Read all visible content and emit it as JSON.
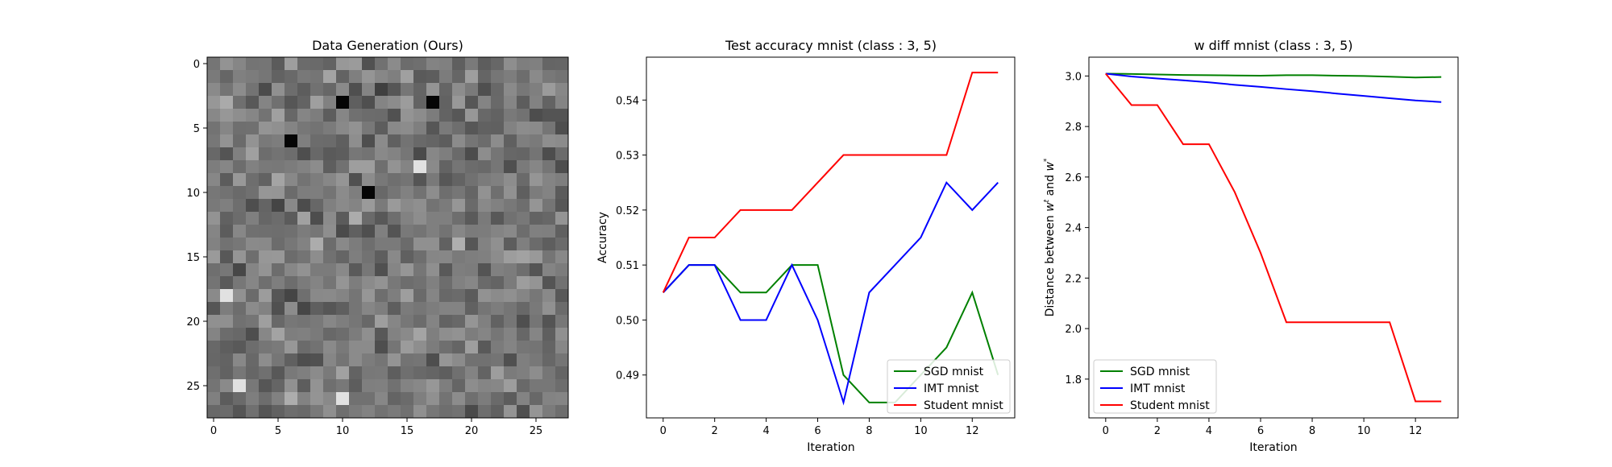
{
  "charts": [
    {
      "type": "heatmap",
      "title": "Data Generation (Ours)",
      "xlabel": "",
      "ylabel": "",
      "rows": 28,
      "cols": 28,
      "colormap": "gray",
      "seed": 7,
      "dark_cells": [
        [
          3,
          10
        ],
        [
          3,
          17
        ],
        [
          6,
          6
        ],
        [
          10,
          12
        ]
      ],
      "bright_cells": [
        [
          8,
          16
        ],
        [
          26,
          10
        ],
        [
          25,
          2
        ],
        [
          18,
          1
        ]
      ],
      "xticks": [
        "0",
        "5",
        "10",
        "15",
        "20",
        "25"
      ],
      "yticks": [
        "0",
        "5",
        "10",
        "15",
        "20",
        "25"
      ],
      "xtick_values": [
        0,
        5,
        10,
        15,
        20,
        25
      ],
      "ytick_values": [
        0,
        5,
        10,
        15,
        20,
        25
      ]
    },
    {
      "type": "line",
      "title": "Test accuracy mnist (class : 3, 5)",
      "xlabel": "Iteration",
      "ylabel": "Accuracy",
      "xlim": [
        -0.65,
        13.65
      ],
      "ylim": [
        0.4822,
        0.5478
      ],
      "xticks": [
        0,
        2,
        4,
        6,
        8,
        10,
        12
      ],
      "yticks": [
        0.49,
        0.5,
        0.51,
        0.52,
        0.53,
        0.54
      ],
      "ytick_labels": [
        "0.49",
        "0.50",
        "0.51",
        "0.52",
        "0.53",
        "0.54"
      ],
      "legend_position": "lower-right",
      "series": [
        {
          "name": "SGD mnist",
          "color": "#008000",
          "x": [
            0,
            1,
            2,
            3,
            4,
            5,
            6,
            7,
            8,
            9,
            10,
            11,
            12,
            13
          ],
          "values": [
            0.505,
            0.51,
            0.51,
            0.505,
            0.505,
            0.51,
            0.51,
            0.49,
            0.485,
            0.485,
            0.49,
            0.495,
            0.505,
            0.49
          ]
        },
        {
          "name": "IMT mnist",
          "color": "#0000ff",
          "x": [
            0,
            1,
            2,
            3,
            4,
            5,
            6,
            7,
            8,
            9,
            10,
            11,
            12,
            13
          ],
          "values": [
            0.505,
            0.51,
            0.51,
            0.5,
            0.5,
            0.51,
            0.5,
            0.485,
            0.505,
            0.51,
            0.515,
            0.525,
            0.52,
            0.525
          ]
        },
        {
          "name": "Student mnist",
          "color": "#ff0000",
          "x": [
            0,
            1,
            2,
            3,
            4,
            5,
            6,
            7,
            8,
            9,
            10,
            11,
            12,
            13
          ],
          "values": [
            0.505,
            0.515,
            0.515,
            0.52,
            0.52,
            0.52,
            0.525,
            0.53,
            0.53,
            0.53,
            0.53,
            0.53,
            0.545,
            0.545
          ]
        }
      ]
    },
    {
      "type": "line",
      "title": "w diff mnist (class : 3, 5)",
      "xlabel": "Iteration",
      "ylabel_prefix": "Distance between ",
      "ylabel_w1": "w",
      "ylabel_sup1": "t",
      "ylabel_mid": " and ",
      "ylabel_w2": "w",
      "ylabel_sup2": "*",
      "xlim": [
        -0.65,
        13.65
      ],
      "ylim": [
        1.6465,
        3.0745
      ],
      "xticks": [
        0,
        2,
        4,
        6,
        8,
        10,
        12
      ],
      "yticks": [
        1.8,
        2.0,
        2.2,
        2.4,
        2.6,
        2.8,
        3.0
      ],
      "ytick_labels": [
        "1.8",
        "2.0",
        "2.2",
        "2.4",
        "2.6",
        "2.8",
        "3.0"
      ],
      "legend_position": "lower-left",
      "series": [
        {
          "name": "SGD mnist",
          "color": "#008000",
          "x": [
            0,
            1,
            2,
            3,
            4,
            5,
            6,
            7,
            8,
            9,
            10,
            11,
            12,
            13
          ],
          "values": [
            3.009,
            3.008,
            3.006,
            3.004,
            3.003,
            3.002,
            3.001,
            3.003,
            3.003,
            3.001,
            3.0,
            2.997,
            2.994,
            2.996
          ]
        },
        {
          "name": "IMT mnist",
          "color": "#0000ff",
          "x": [
            0,
            1,
            2,
            3,
            4,
            5,
            6,
            7,
            8,
            9,
            10,
            11,
            12,
            13
          ],
          "values": [
            3.009,
            2.998,
            2.99,
            2.983,
            2.975,
            2.965,
            2.957,
            2.948,
            2.94,
            2.93,
            2.921,
            2.912,
            2.903,
            2.897
          ]
        },
        {
          "name": "Student mnist",
          "color": "#ff0000",
          "x": [
            0,
            1,
            2,
            3,
            4,
            5,
            6,
            7,
            8,
            9,
            10,
            11,
            12,
            13
          ],
          "values": [
            3.009,
            2.885,
            2.885,
            2.73,
            2.73,
            2.54,
            2.3,
            2.025,
            2.025,
            2.025,
            2.025,
            2.025,
            1.712,
            1.712
          ]
        }
      ]
    }
  ]
}
